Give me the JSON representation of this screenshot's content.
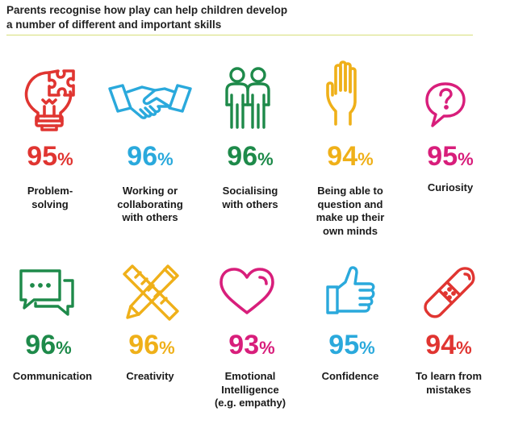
{
  "title": {
    "line1": "Parents recognise how play can help children develop",
    "line2": "a number of different and important skills"
  },
  "skills": [
    {
      "value": "95",
      "unit": "%",
      "label": [
        "Problem-",
        "solving"
      ],
      "color": "#e03531",
      "icon": "lightbulb-puzzle-icon"
    },
    {
      "value": "96",
      "unit": "%",
      "label": [
        "Working or",
        "collaborating",
        "with others"
      ],
      "color": "#2aa9dc",
      "icon": "handshake-icon"
    },
    {
      "value": "96",
      "unit": "%",
      "label": [
        "Socialising",
        "with others"
      ],
      "color": "#1e8a4a",
      "icon": "two-people-icon"
    },
    {
      "value": "94",
      "unit": "%",
      "label": [
        "Being able to",
        "question and",
        "make up their",
        "own minds"
      ],
      "color": "#efb019",
      "icon": "raised-hand-icon"
    },
    {
      "value": "95",
      "unit": "%",
      "label": [
        "Curiosity"
      ],
      "color": "#d81e7b",
      "icon": "question-bubble-icon"
    },
    {
      "value": "96",
      "unit": "%",
      "label": [
        "Communication"
      ],
      "color": "#1e8a4a",
      "icon": "chat-bubbles-icon"
    },
    {
      "value": "96",
      "unit": "%",
      "label": [
        "Creativity"
      ],
      "color": "#efb019",
      "icon": "pencil-ruler-icon"
    },
    {
      "value": "93",
      "unit": "%",
      "label": [
        "Emotional",
        "Intelligence",
        "(e.g. empathy)"
      ],
      "color": "#d81e7b",
      "icon": "heart-icon"
    },
    {
      "value": "95",
      "unit": "%",
      "label": [
        "Confidence"
      ],
      "color": "#2aa9dc",
      "icon": "thumbs-up-icon"
    },
    {
      "value": "94",
      "unit": "%",
      "label": [
        "To learn from",
        "mistakes"
      ],
      "color": "#e03531",
      "icon": "plaster-icon"
    }
  ]
}
